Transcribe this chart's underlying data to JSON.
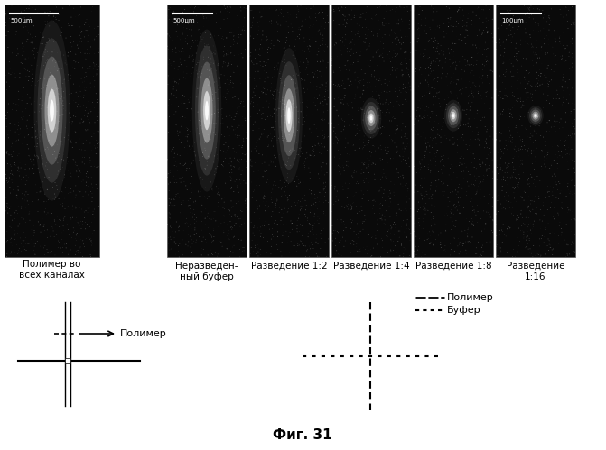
{
  "title": "Фиг. 31",
  "bg_color": "#ffffff",
  "labels_below_panels": [
    "Неразведен-\nный буфер",
    "Разведение 1:2",
    "Разведение 1:4",
    "Разведение 1:8",
    "Разведение\n1:16"
  ],
  "left_label": "Полимер во\nвсех каналах",
  "arrow_label": "Полимер",
  "legend_polymer": "Полимер",
  "legend_buffer": "Буфер",
  "scale_bar_left": "500μm",
  "scale_bar_mid": "500μm",
  "scale_bar_right": "100μm"
}
